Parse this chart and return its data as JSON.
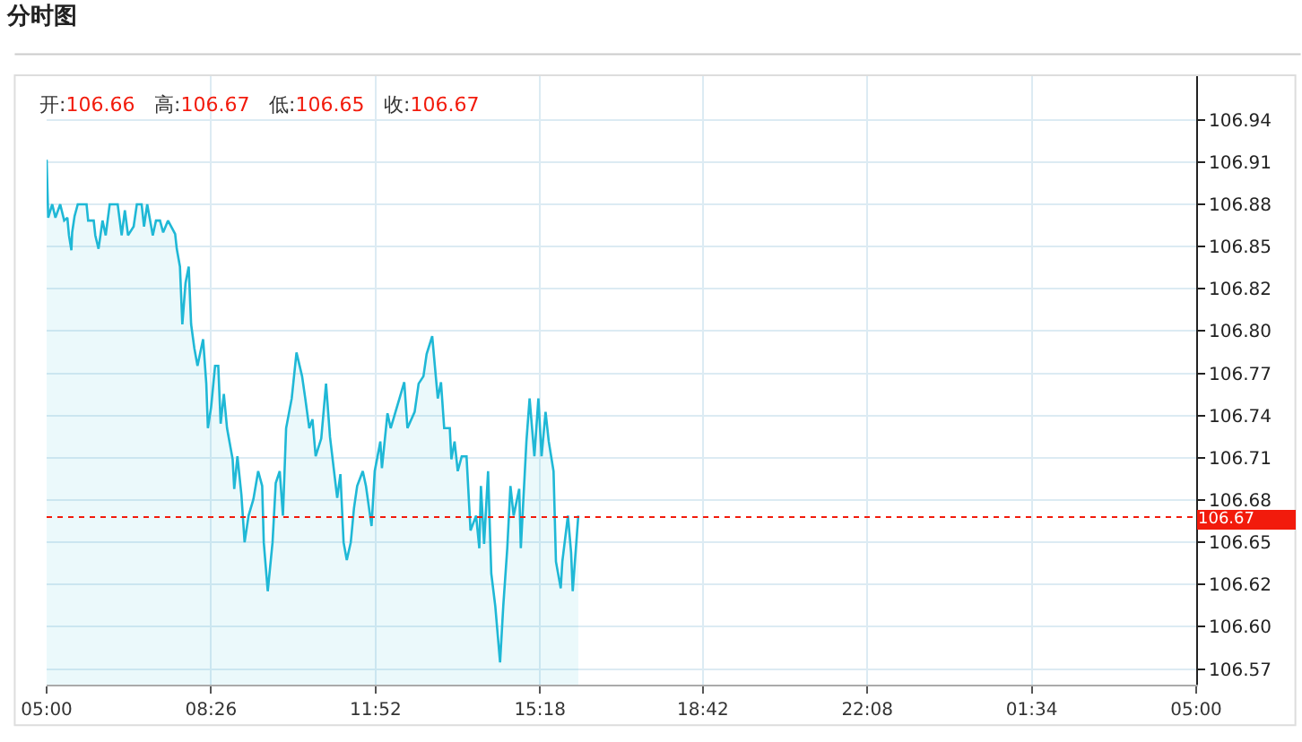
{
  "chart_data": {
    "type": "area",
    "title": "分时图",
    "annotations": [
      "开:106.66",
      "高:106.67",
      "低:106.65",
      "收:106.67"
    ],
    "x": [
      "--01-01T05:00",
      "--01-01T05:02",
      "--01-01T05:07",
      "--01-01T05:11",
      "--01-01T05:17",
      "--01-01T05:22",
      "--01-01T05:26",
      "--01-01T05:28",
      "--01-01T05:31",
      "--01-01T05:32",
      "--01-01T05:35",
      "--01-01T05:39",
      "--01-01T05:50",
      "--01-01T05:52",
      "--01-01T05:59",
      "--01-01T06:01",
      "--01-01T06:05",
      "--01-01T06:10",
      "--01-01T06:14",
      "--01-01T06:19",
      "--01-01T06:29",
      "--01-01T06:34",
      "--01-01T06:38",
      "--01-01T06:42",
      "--01-01T06:49",
      "--01-01T06:53",
      "--01-01T06:59",
      "--01-01T07:02",
      "--01-01T07:06",
      "--01-01T07:13",
      "--01-01T07:17",
      "--01-01T07:22",
      "--01-01T07:26",
      "--01-01T07:32",
      "--01-01T07:41",
      "--01-01T07:43",
      "--01-01T07:47",
      "--01-01T07:50",
      "--01-01T07:54",
      "--01-01T07:58",
      "--01-01T08:01",
      "--01-01T08:05",
      "--01-01T08:09",
      "--01-01T08:16",
      "--01-01T08:20",
      "--01-01T08:22",
      "--01-01T08:26",
      "--01-01T08:31",
      "--01-01T08:35",
      "--01-01T08:38",
      "--01-01T08:42",
      "--01-01T08:46",
      "--01-01T08:53",
      "--01-01T08:55",
      "--01-01T08:59",
      "--01-01T09:04",
      "--01-01T09:08",
      "--01-01T09:13",
      "--01-01T09:19",
      "--01-01T09:25",
      "--01-01T09:30",
      "--01-01T09:32",
      "--01-01T09:37",
      "--01-01T09:43",
      "--01-01T09:47",
      "--01-01T09:52",
      "--01-01T09:56",
      "--01-01T10:00",
      "--01-01T10:07",
      "--01-01T10:13",
      "--01-01T10:20",
      "--01-01T10:24",
      "--01-01T10:29",
      "--01-01T10:33",
      "--01-01T10:37",
      "--01-01T10:44",
      "--01-01T10:50",
      "--01-01T10:55",
      "--01-01T11:04",
      "--01-01T11:08",
      "--01-01T11:12",
      "--01-01T11:16",
      "--01-01T11:21",
      "--01-01T11:25",
      "--01-01T11:29",
      "--01-01T11:36",
      "--01-01T11:40",
      "--01-01T11:47",
      "--01-01T11:51",
      "--01-01T11:58",
      "--01-01T12:00",
      "--01-01T12:07",
      "--01-01T12:11",
      "--01-01T12:17",
      "--01-01T12:22",
      "--01-01T12:28",
      "--01-01T12:32",
      "--01-01T12:41",
      "--01-01T12:46",
      "--01-01T12:52",
      "--01-01T12:56",
      "--01-01T13:03",
      "--01-01T13:05",
      "--01-01T13:10",
      "--01-01T13:14",
      "--01-01T13:18",
      "--01-01T13:25",
      "--01-01T13:27",
      "--01-01T13:31",
      "--01-01T13:35",
      "--01-01T13:40",
      "--01-01T13:46",
      "--01-01T13:51",
      "--01-01T13:58",
      "--01-01T14:02",
      "--01-01T14:04",
      "--01-01T14:08",
      "--01-01T14:13",
      "--01-01T14:17",
      "--01-01T14:22",
      "--01-01T14:28",
      "--01-01T14:32",
      "--01-01T14:37",
      "--01-01T14:41",
      "--01-01T14:45",
      "--01-01T14:52",
      "--01-01T14:54",
      "--01-01T15:01",
      "--01-01T15:05",
      "--01-01T15:11",
      "--01-01T15:16",
      "--01-01T15:20",
      "--01-01T15:25",
      "--01-01T15:29",
      "--01-01T15:35",
      "--01-01T15:38",
      "--01-01T15:44",
      "--01-01T15:46",
      "--01-01T15:53",
      "--01-01T15:57",
      "--01-01T15:59",
      "--01-01T16:06"
    ],
    "series": [
      {
        "color": "#1fb8d6",
        "values": [
          106.911,
          106.872,
          106.881,
          106.872,
          106.881,
          106.87,
          106.872,
          106.86,
          106.85,
          106.862,
          106.873,
          106.881,
          106.881,
          106.87,
          106.87,
          106.86,
          106.851,
          106.87,
          106.86,
          106.881,
          106.881,
          106.86,
          106.877,
          106.86,
          106.866,
          106.881,
          106.881,
          106.866,
          106.881,
          106.86,
          106.87,
          106.87,
          106.862,
          106.87,
          106.861,
          106.851,
          106.839,
          106.8,
          106.828,
          106.839,
          106.8,
          106.784,
          106.772,
          106.79,
          106.76,
          106.73,
          106.744,
          106.772,
          106.772,
          106.733,
          106.753,
          106.73,
          106.709,
          106.689,
          106.711,
          106.685,
          106.653,
          106.671,
          106.682,
          106.701,
          106.691,
          106.653,
          106.62,
          106.653,
          106.693,
          106.701,
          106.671,
          106.73,
          106.75,
          106.781,
          106.765,
          106.75,
          106.73,
          106.736,
          106.711,
          106.723,
          106.76,
          106.724,
          106.683,
          106.699,
          106.653,
          106.641,
          106.653,
          106.676,
          106.691,
          106.701,
          106.691,
          106.664,
          106.701,
          106.721,
          106.703,
          106.74,
          106.73,
          106.741,
          106.75,
          106.761,
          106.73,
          106.741,
          106.76,
          106.765,
          106.78,
          106.792,
          106.78,
          106.75,
          106.761,
          106.73,
          106.73,
          106.709,
          106.721,
          106.701,
          106.711,
          106.711,
          106.661,
          106.671,
          106.649,
          106.691,
          106.652,
          106.701,
          106.632,
          106.61,
          106.572,
          106.61,
          106.649,
          106.691,
          106.671,
          106.689,
          106.649,
          106.721,
          106.75,
          106.711,
          106.75,
          106.711,
          106.741,
          106.721,
          106.701,
          106.64,
          106.622,
          106.64,
          106.671,
          106.646,
          106.62,
          106.671
        ]
      }
    ],
    "xlim": [
      "--01-01T05:00",
      "--01-02T05:00"
    ],
    "xticks": [
      {
        "value": "--01-01T05:00",
        "label": "05:00"
      },
      {
        "value": "--01-01T08:26",
        "label": "08:26"
      },
      {
        "value": "--01-01T11:52",
        "label": "11:52"
      },
      {
        "value": "--01-01T15:18",
        "label": "15:18"
      },
      {
        "value": "--01-01T18:42",
        "label": "18:42"
      },
      {
        "value": "--01-01T22:08",
        "label": "22:08"
      },
      {
        "value": "--01-02T01:34",
        "label": "01:34"
      },
      {
        "value": "--01-02T05:00",
        "label": "05:00"
      }
    ],
    "ylim": [
      106.557,
      106.968
    ],
    "yticks": [
      {
        "value": 106.5675,
        "label": "106.57"
      },
      {
        "value": 106.596,
        "label": "106.60"
      },
      {
        "value": 106.6245,
        "label": "106.62"
      },
      {
        "value": 106.653,
        "label": "106.65"
      },
      {
        "value": 106.6815,
        "label": "106.68"
      },
      {
        "value": 106.71,
        "label": "106.71"
      },
      {
        "value": 106.7385,
        "label": "106.74"
      },
      {
        "value": 106.767,
        "label": "106.77"
      },
      {
        "value": 106.7955,
        "label": "106.80"
      },
      {
        "value": 106.824,
        "label": "106.82"
      },
      {
        "value": 106.8525,
        "label": "106.85"
      },
      {
        "value": 106.881,
        "label": "106.88"
      },
      {
        "value": 106.9095,
        "label": "106.91"
      },
      {
        "value": 106.938,
        "label": "106.94"
      }
    ],
    "ref_lines": [
      {
        "axis": "y",
        "value": 106.67,
        "label": "106.67",
        "color": "#f21b0c",
        "line_style": "dotted"
      }
    ],
    "grid": true
  }
}
